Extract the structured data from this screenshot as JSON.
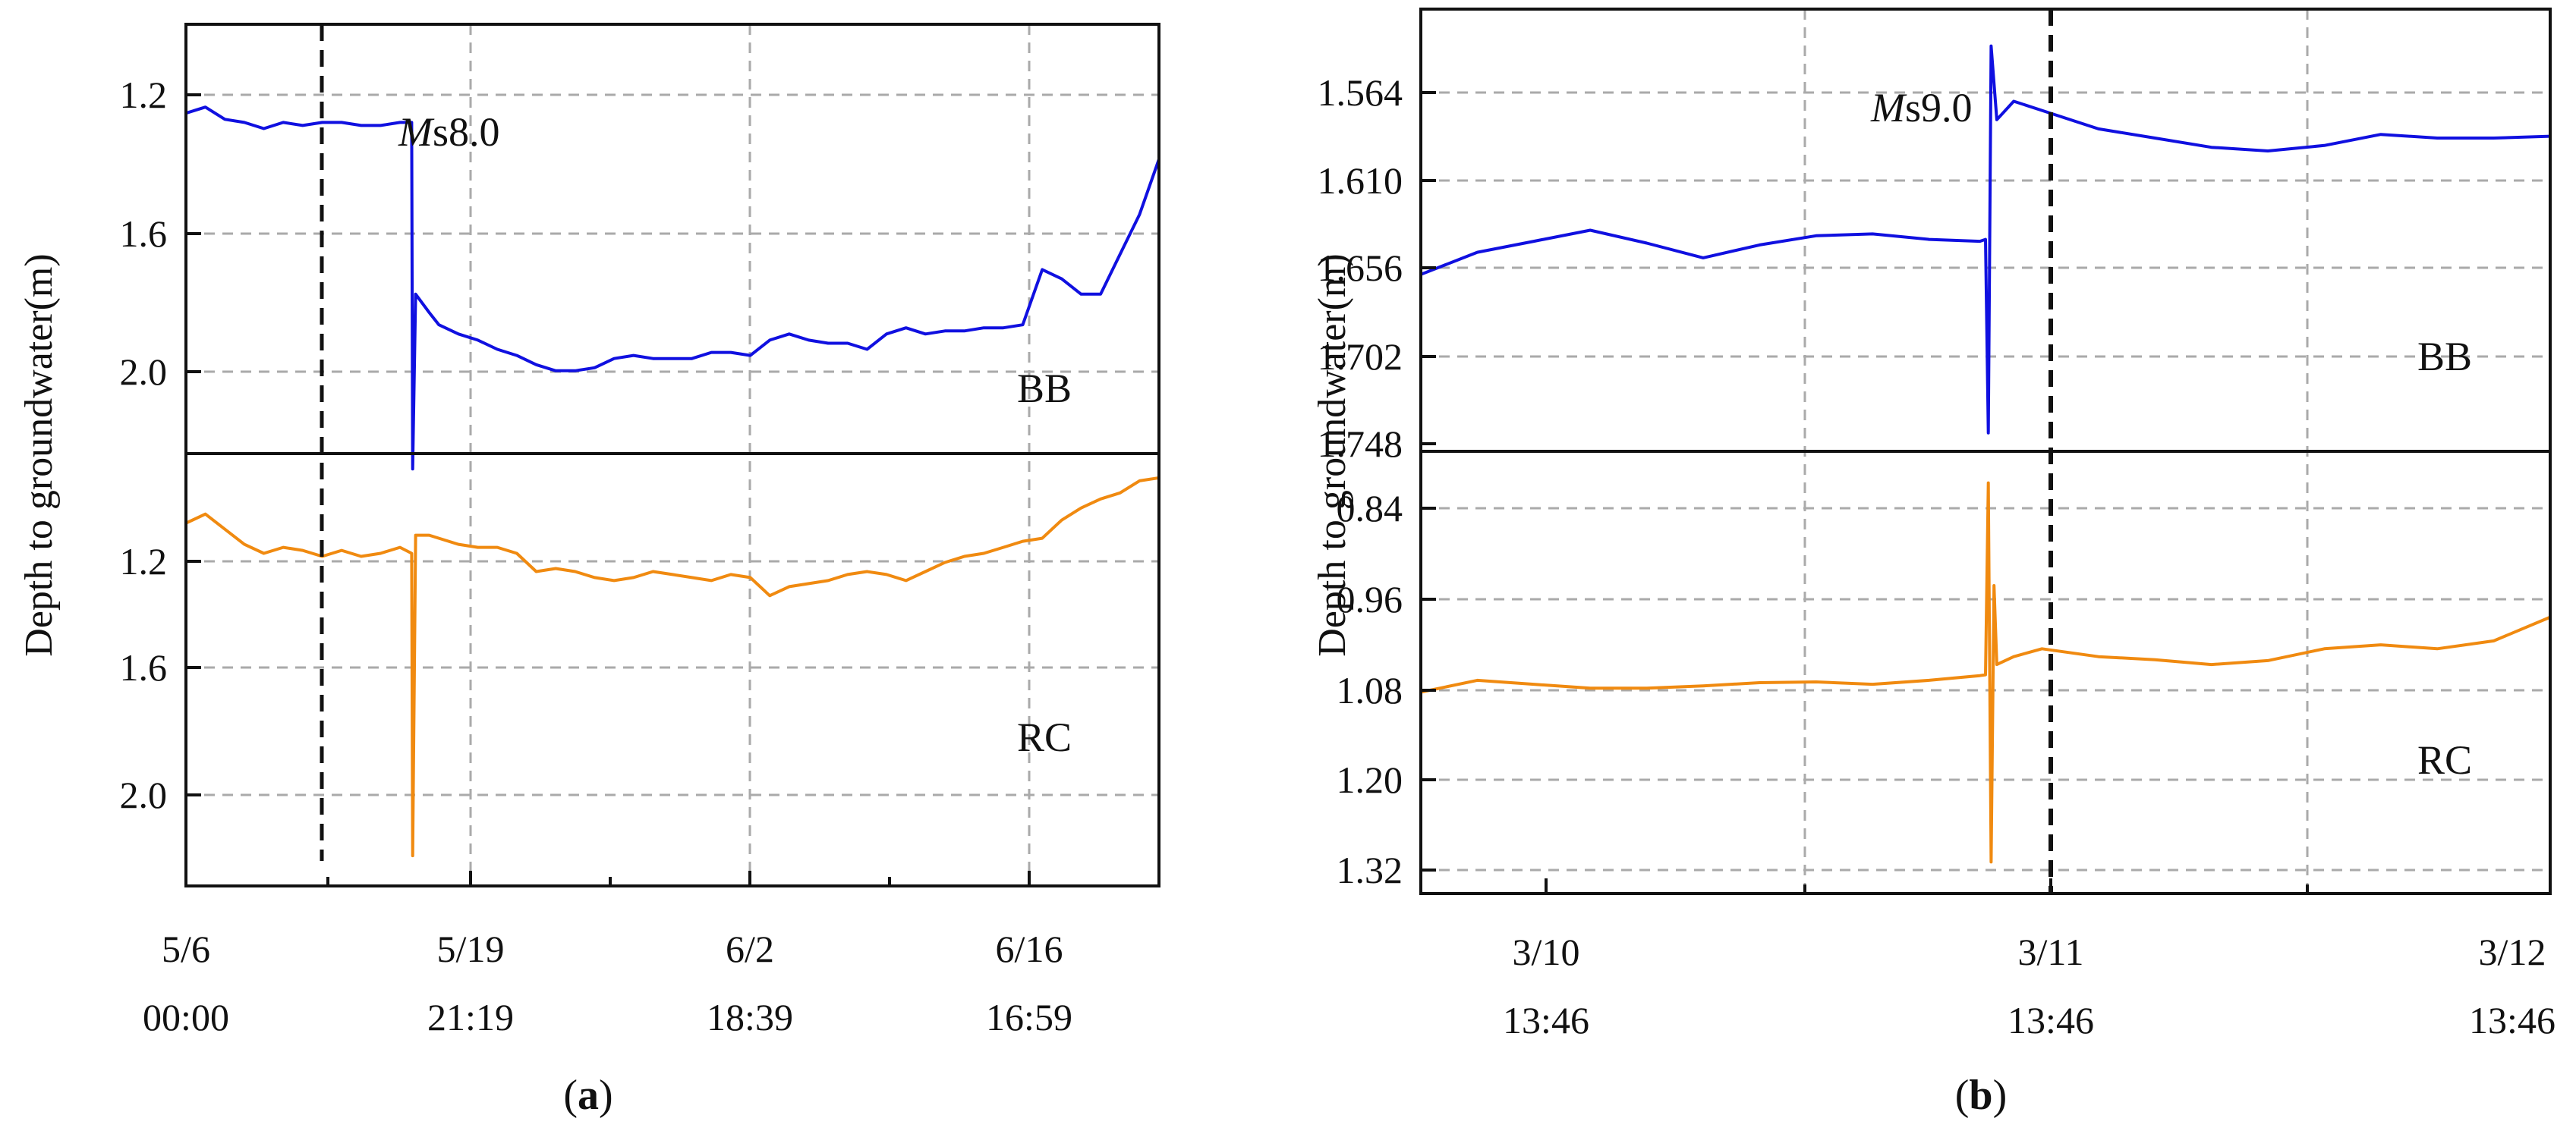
{
  "panels": [
    {
      "id": "a",
      "label": "a",
      "ylabel": "Depth to groundwater(m)",
      "xtick_labels": [
        {
          "line1": "5/6",
          "line2": "00:00"
        },
        {
          "line1": "5/19",
          "line2": "21:19"
        },
        {
          "line1": "6/2",
          "line2": "18:39"
        },
        {
          "line1": "6/16",
          "line2": "16:59"
        }
      ],
      "event_label": {
        "italic": "M",
        "rest": "s8.0"
      },
      "chart_data": [
        {
          "type": "line",
          "station": "BB",
          "color": "#1010e0",
          "y_inverted": true,
          "ylim": [
            0.9,
            2.3
          ],
          "yticks": [
            "1.2",
            "1.6",
            "2.0"
          ],
          "x_range_days": [
            0,
            50
          ],
          "event_day": 11.6,
          "points": [
            [
              0,
              1.19
            ],
            [
              1,
              1.17
            ],
            [
              2,
              1.21
            ],
            [
              3,
              1.22
            ],
            [
              4,
              1.24
            ],
            [
              5,
              1.22
            ],
            [
              6,
              1.23
            ],
            [
              7,
              1.22
            ],
            [
              8,
              1.22
            ],
            [
              9,
              1.23
            ],
            [
              10,
              1.23
            ],
            [
              11,
              1.22
            ],
            [
              11.6,
              1.22
            ],
            [
              11.65,
              2.35
            ],
            [
              11.8,
              1.78
            ],
            [
              12.5,
              1.84
            ],
            [
              13,
              1.88
            ],
            [
              14,
              1.91
            ],
            [
              15,
              1.93
            ],
            [
              16,
              1.96
            ],
            [
              17,
              1.98
            ],
            [
              18,
              2.01
            ],
            [
              19,
              2.03
            ],
            [
              20,
              2.03
            ],
            [
              21,
              2.02
            ],
            [
              22,
              1.99
            ],
            [
              23,
              1.98
            ],
            [
              24,
              1.99
            ],
            [
              25,
              1.99
            ],
            [
              26,
              1.99
            ],
            [
              27,
              1.97
            ],
            [
              28,
              1.97
            ],
            [
              29,
              1.98
            ],
            [
              30,
              1.93
            ],
            [
              31,
              1.91
            ],
            [
              32,
              1.93
            ],
            [
              33,
              1.94
            ],
            [
              34,
              1.94
            ],
            [
              35,
              1.96
            ],
            [
              36,
              1.91
            ],
            [
              37,
              1.89
            ],
            [
              38,
              1.91
            ],
            [
              39,
              1.9
            ],
            [
              40,
              1.9
            ],
            [
              41,
              1.89
            ],
            [
              42,
              1.89
            ],
            [
              43,
              1.88
            ],
            [
              44,
              1.7
            ],
            [
              45,
              1.73
            ],
            [
              46,
              1.78
            ],
            [
              47,
              1.78
            ],
            [
              48,
              1.65
            ],
            [
              49,
              1.52
            ],
            [
              50,
              1.34
            ]
          ]
        },
        {
          "type": "line",
          "station": "RC",
          "color": "#f08a10",
          "y_inverted": true,
          "ylim": [
            0.82,
            2.25
          ],
          "yticks": [
            "1.2",
            "1.6",
            "2.0"
          ],
          "x_range_days": [
            0,
            50
          ],
          "event_day": 11.6,
          "points": [
            [
              0,
              1.05
            ],
            [
              1,
              1.02
            ],
            [
              2,
              1.07
            ],
            [
              3,
              1.12
            ],
            [
              4,
              1.15
            ],
            [
              5,
              1.13
            ],
            [
              6,
              1.14
            ],
            [
              7,
              1.16
            ],
            [
              8,
              1.14
            ],
            [
              9,
              1.16
            ],
            [
              10,
              1.15
            ],
            [
              11,
              1.13
            ],
            [
              11.6,
              1.15
            ],
            [
              11.65,
              2.15
            ],
            [
              11.8,
              1.09
            ],
            [
              12.5,
              1.09
            ],
            [
              13,
              1.1
            ],
            [
              14,
              1.12
            ],
            [
              15,
              1.13
            ],
            [
              16,
              1.13
            ],
            [
              17,
              1.15
            ],
            [
              18,
              1.21
            ],
            [
              19,
              1.2
            ],
            [
              20,
              1.21
            ],
            [
              21,
              1.23
            ],
            [
              22,
              1.24
            ],
            [
              23,
              1.23
            ],
            [
              24,
              1.21
            ],
            [
              25,
              1.22
            ],
            [
              26,
              1.23
            ],
            [
              27,
              1.24
            ],
            [
              28,
              1.22
            ],
            [
              29,
              1.23
            ],
            [
              30,
              1.29
            ],
            [
              31,
              1.26
            ],
            [
              32,
              1.25
            ],
            [
              33,
              1.24
            ],
            [
              34,
              1.22
            ],
            [
              35,
              1.21
            ],
            [
              36,
              1.22
            ],
            [
              37,
              1.24
            ],
            [
              38,
              1.21
            ],
            [
              39,
              1.18
            ],
            [
              40,
              1.16
            ],
            [
              41,
              1.15
            ],
            [
              42,
              1.13
            ],
            [
              43,
              1.11
            ],
            [
              44,
              1.1
            ],
            [
              45,
              1.04
            ],
            [
              46,
              1.0
            ],
            [
              47,
              0.97
            ],
            [
              48,
              0.95
            ],
            [
              49,
              0.91
            ],
            [
              50,
              0.9
            ]
          ]
        }
      ]
    },
    {
      "id": "b",
      "label": "b",
      "ylabel": "Depth to groundwater(m)",
      "xtick_labels": [
        {
          "line1": "3/10",
          "line2": "13:46"
        },
        {
          "line1": "3/11",
          "line2": "13:46"
        },
        {
          "line1": "3/12",
          "line2": "13:46"
        }
      ],
      "event_label": {
        "italic": "M",
        "rest": "s9.0"
      },
      "chart_data": [
        {
          "type": "line",
          "station": "BB",
          "color": "#1010e0",
          "y_inverted": true,
          "ylim": [
            1.51,
            1.75
          ],
          "yticks": [
            "1.564",
            "1.610",
            "1.656",
            "1.702",
            "1.748"
          ],
          "x_range_days": [
            0,
            2
          ],
          "event_day": 1.0,
          "points": [
            [
              0,
              1.654
            ],
            [
              0.1,
              1.642
            ],
            [
              0.2,
              1.636
            ],
            [
              0.3,
              1.63
            ],
            [
              0.4,
              1.637
            ],
            [
              0.5,
              1.645
            ],
            [
              0.6,
              1.638
            ],
            [
              0.7,
              1.633
            ],
            [
              0.8,
              1.632
            ],
            [
              0.9,
              1.635
            ],
            [
              0.99,
              1.636
            ],
            [
              1.0,
              1.635
            ],
            [
              1.005,
              1.74
            ],
            [
              1.01,
              1.53
            ],
            [
              1.02,
              1.57
            ],
            [
              1.05,
              1.56
            ],
            [
              1.1,
              1.565
            ],
            [
              1.2,
              1.575
            ],
            [
              1.3,
              1.58
            ],
            [
              1.4,
              1.585
            ],
            [
              1.5,
              1.587
            ],
            [
              1.6,
              1.584
            ],
            [
              1.7,
              1.578
            ],
            [
              1.8,
              1.58
            ],
            [
              1.9,
              1.58
            ],
            [
              2.0,
              1.579
            ]
          ]
        },
        {
          "type": "line",
          "station": "RC",
          "color": "#f08a10",
          "y_inverted": true,
          "ylim": [
            0.78,
            1.34
          ],
          "yticks": [
            "0.84",
            "0.96",
            "1.08",
            "1.20",
            "1.32"
          ],
          "x_range_days": [
            0,
            2
          ],
          "event_day": 1.0,
          "points": [
            [
              0,
              1.085
            ],
            [
              0.1,
              1.07
            ],
            [
              0.2,
              1.075
            ],
            [
              0.3,
              1.08
            ],
            [
              0.4,
              1.08
            ],
            [
              0.5,
              1.077
            ],
            [
              0.6,
              1.073
            ],
            [
              0.7,
              1.072
            ],
            [
              0.8,
              1.075
            ],
            [
              0.9,
              1.07
            ],
            [
              0.99,
              1.064
            ],
            [
              1.0,
              1.063
            ],
            [
              1.005,
              0.82
            ],
            [
              1.01,
              1.3
            ],
            [
              1.015,
              0.95
            ],
            [
              1.02,
              1.05
            ],
            [
              1.05,
              1.04
            ],
            [
              1.1,
              1.03
            ],
            [
              1.2,
              1.04
            ],
            [
              1.3,
              1.044
            ],
            [
              1.4,
              1.05
            ],
            [
              1.5,
              1.045
            ],
            [
              1.6,
              1.03
            ],
            [
              1.7,
              1.025
            ],
            [
              1.8,
              1.03
            ],
            [
              1.9,
              1.02
            ],
            [
              2.0,
              0.99
            ]
          ]
        }
      ]
    }
  ]
}
